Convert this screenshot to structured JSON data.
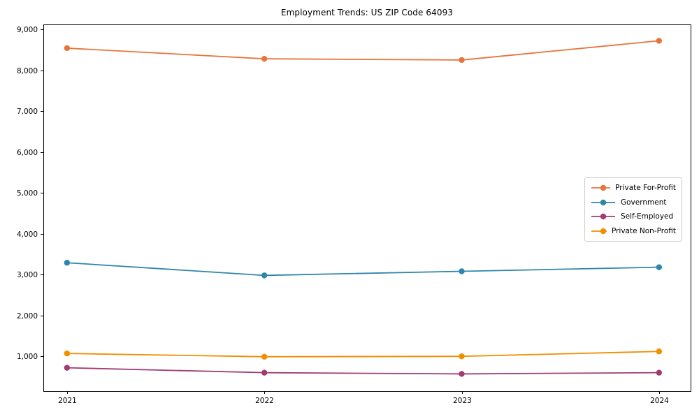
{
  "title": "Employment Trends: US ZIP Code 64093",
  "chart_data": {
    "type": "line",
    "title": "Employment Trends: US ZIP Code 64093",
    "xlabel": "",
    "ylabel": "",
    "x": [
      2021,
      2022,
      2023,
      2024
    ],
    "x_tick_labels": [
      "2021",
      "2022",
      "2023",
      "2024"
    ],
    "y_ticks": [
      1000,
      2000,
      3000,
      4000,
      5000,
      6000,
      7000,
      8000,
      9000
    ],
    "y_tick_labels": [
      "1,000",
      "2,000",
      "3,000",
      "4,000",
      "5,000",
      "6,000",
      "7,000",
      "8,000",
      "9,000"
    ],
    "xlim": [
      2020.88,
      2024.16
    ],
    "ylim": [
      150,
      9120
    ],
    "grid": false,
    "legend_position": "center right",
    "marker": "circle",
    "background_color": "#ffffff",
    "spine_color": "#000000",
    "series": [
      {
        "name": "Private For-Profit",
        "color": "#e8743b",
        "values": [
          8540,
          8280,
          8250,
          8720
        ]
      },
      {
        "name": "Government",
        "color": "#2e86ab",
        "values": [
          3290,
          2980,
          3080,
          3180
        ]
      },
      {
        "name": "Self-Employed",
        "color": "#a23b72",
        "values": [
          720,
          600,
          570,
          600
        ]
      },
      {
        "name": "Private Non-Profit",
        "color": "#f18f01",
        "values": [
          1070,
          990,
          1000,
          1120
        ]
      }
    ]
  }
}
